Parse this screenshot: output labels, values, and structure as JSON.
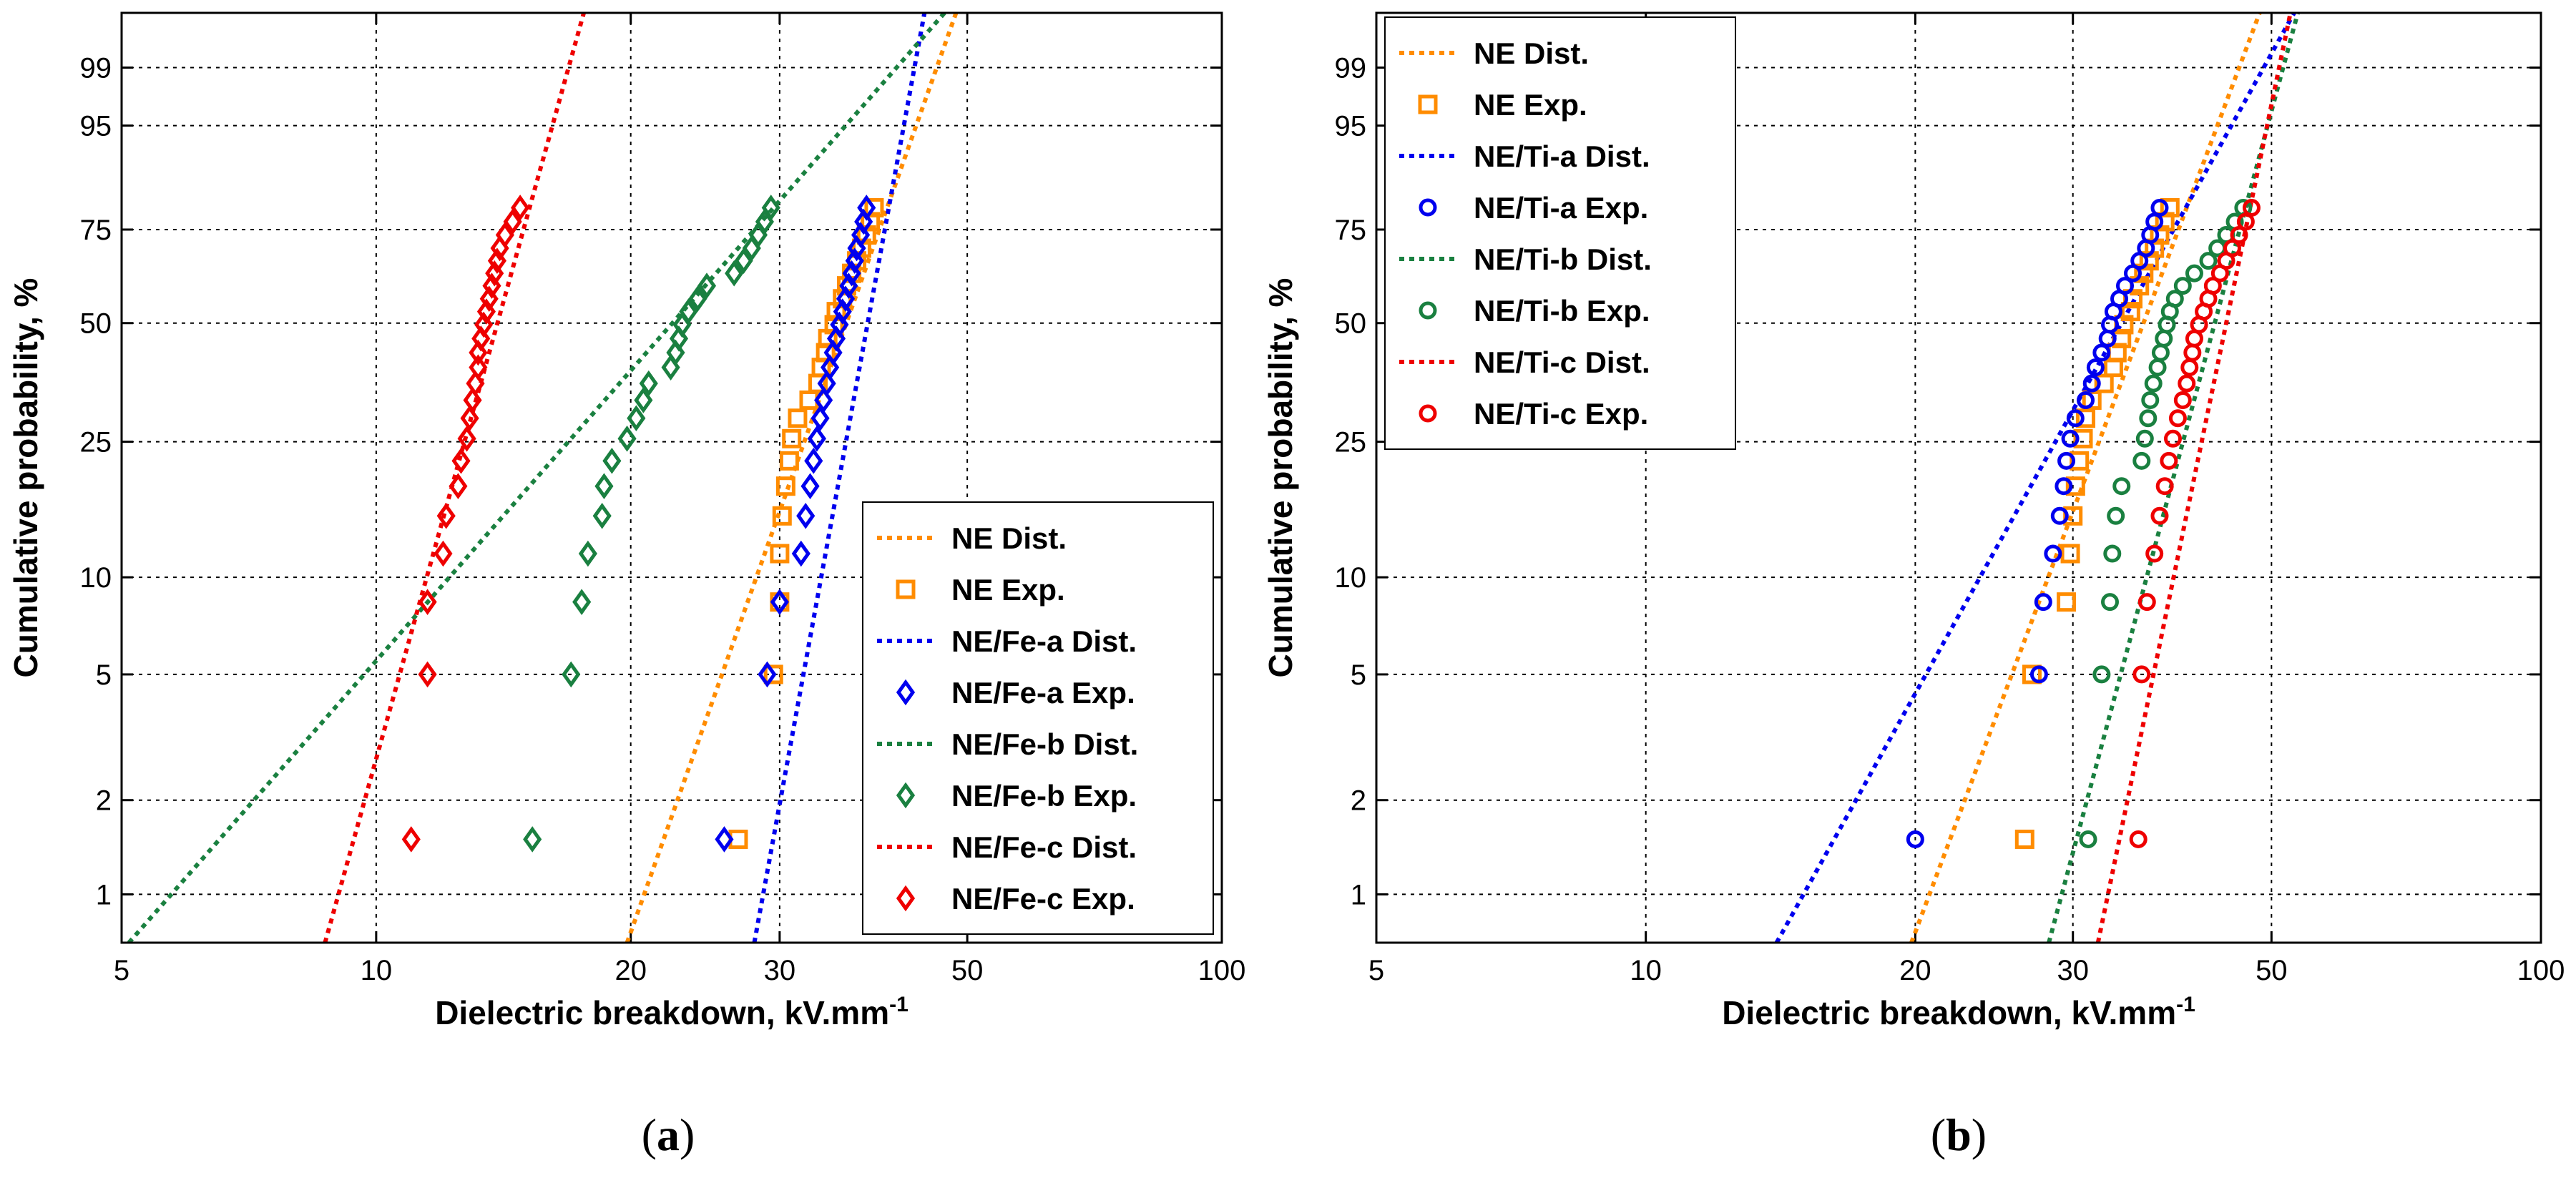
{
  "chart_data": [
    {
      "type": "scatter",
      "panel_label": "a",
      "xscale": "log",
      "yscale": "weibull",
      "xlim": [
        5,
        100
      ],
      "ylim": [
        0.7,
        99.9
      ],
      "xticks": [
        5,
        10,
        20,
        30,
        50,
        100
      ],
      "yticks": [
        1,
        2,
        5,
        10,
        25,
        50,
        75,
        95,
        99
      ],
      "xlabel": "Dielectric breakdown, kV.mm",
      "xlabel_sup": "-1",
      "ylabel": "Cumulative probability, %",
      "grid": true,
      "legend_position": "lower-right",
      "series": [
        {
          "name": "NE Dist.",
          "kind": "line",
          "color": "#FF8C00",
          "x": [
            19.8,
            48.5
          ]
        },
        {
          "name": "NE Exp.",
          "kind": "points",
          "marker": "square",
          "color": "#FF8C00",
          "x": [
            26.8,
            29.5,
            30.0,
            30.0,
            30.2,
            30.5,
            30.8,
            31.0,
            31.5,
            32.5,
            33.3,
            33.6,
            34.0,
            34.2,
            34.8,
            35.0,
            35.6,
            36.0,
            36.5,
            37.0,
            37.5,
            38.0,
            38.4,
            38.8
          ],
          "y": [
            1.5,
            5,
            8.4,
            11.8,
            15.3,
            18.7,
            22.1,
            25.5,
            29.0,
            32.4,
            35.8,
            39.3,
            42.7,
            46.1,
            49.6,
            53.0,
            56.4,
            59.9,
            63.3,
            66.7,
            70.1,
            73.6,
            77.0,
            80.4
          ]
        },
        {
          "name": "NE/Fe-a Dist.",
          "kind": "line",
          "color": "#0000EE",
          "x": [
            28.0,
            44.5
          ]
        },
        {
          "name": "NE/Fe-a Exp.",
          "kind": "points",
          "marker": "diamond",
          "color": "#0000EE",
          "x": [
            25.8,
            29.0,
            30.0,
            31.8,
            32.2,
            32.6,
            32.9,
            33.2,
            33.5,
            33.8,
            34.1,
            34.4,
            34.7,
            35.0,
            35.3,
            35.6,
            35.9,
            36.2,
            36.5,
            36.8,
            37.0,
            37.4,
            37.7,
            38.0
          ],
          "y": [
            1.5,
            5,
            8.4,
            11.8,
            15.3,
            18.7,
            22.1,
            25.5,
            29.0,
            32.4,
            35.8,
            39.3,
            42.7,
            46.1,
            49.6,
            53.0,
            56.4,
            59.9,
            63.3,
            66.7,
            70.1,
            73.6,
            77.0,
            80.4
          ]
        },
        {
          "name": "NE/Fe-b Dist.",
          "kind": "line",
          "color": "#1A8040",
          "x": [
            5.1,
            47.0
          ]
        },
        {
          "name": "NE/Fe-b Exp.",
          "kind": "points",
          "marker": "diamond",
          "color": "#1A8040",
          "x": [
            15.3,
            17.0,
            17.5,
            17.8,
            18.5,
            18.6,
            19.0,
            19.8,
            20.3,
            20.7,
            21.0,
            22.3,
            22.6,
            22.8,
            23.0,
            23.4,
            24.0,
            24.6,
            26.5,
            27.2,
            27.8,
            28.3,
            28.8,
            29.3
          ],
          "y": [
            1.5,
            5,
            8.4,
            11.8,
            15.3,
            18.7,
            22.1,
            25.5,
            29.0,
            32.4,
            35.8,
            39.3,
            42.7,
            46.1,
            49.6,
            53.0,
            56.4,
            59.9,
            63.3,
            66.7,
            70.1,
            73.6,
            77.0,
            80.4
          ]
        },
        {
          "name": "NE/Fe-c Dist.",
          "kind": "line",
          "color": "#EE0000",
          "x": [
            8.7,
            17.6
          ]
        },
        {
          "name": "NE/Fe-c Exp.",
          "kind": "points",
          "marker": "diamond",
          "color": "#EE0000",
          "x": [
            11.0,
            11.5,
            11.5,
            12.0,
            12.1,
            12.5,
            12.6,
            12.8,
            12.9,
            13.0,
            13.1,
            13.2,
            13.2,
            13.3,
            13.4,
            13.5,
            13.6,
            13.7,
            13.8,
            13.9,
            14.0,
            14.2,
            14.5,
            14.8
          ],
          "y": [
            1.5,
            5,
            8.4,
            11.8,
            15.3,
            18.7,
            22.1,
            25.5,
            29.0,
            32.4,
            35.8,
            39.3,
            42.7,
            46.1,
            49.6,
            53.0,
            56.4,
            59.9,
            63.3,
            66.7,
            70.1,
            73.6,
            77.0,
            80.4
          ]
        }
      ]
    },
    {
      "type": "scatter",
      "panel_label": "b",
      "xscale": "log",
      "yscale": "weibull",
      "xlim": [
        5,
        100
      ],
      "ylim": [
        0.7,
        99.9
      ],
      "xticks": [
        5,
        10,
        20,
        30,
        50,
        100
      ],
      "yticks": [
        1,
        2,
        5,
        10,
        25,
        50,
        75,
        95,
        99
      ],
      "xlabel": "Dielectric breakdown, kV.mm",
      "xlabel_sup": "-1",
      "ylabel": "Cumulative probability, %",
      "grid": true,
      "legend_position": "top-left",
      "series": [
        {
          "name": "NE Dist.",
          "kind": "line",
          "color": "#FF8C00",
          "x": [
            19.8,
            48.5
          ]
        },
        {
          "name": "NE Exp.",
          "kind": "points",
          "marker": "square",
          "color": "#FF8C00",
          "x": [
            26.5,
            27.0,
            29.5,
            29.8,
            30.0,
            30.2,
            30.5,
            30.8,
            31.0,
            31.5,
            32.5,
            33.3,
            33.6,
            34.0,
            34.2,
            34.8,
            35.0,
            35.6,
            36.0,
            36.5,
            37.0,
            37.5,
            38.0,
            38.5
          ],
          "y": [
            1.5,
            5,
            8.4,
            11.8,
            15.3,
            18.7,
            22.1,
            25.5,
            29.0,
            32.4,
            35.8,
            39.3,
            42.7,
            46.1,
            49.6,
            53.0,
            56.4,
            59.9,
            63.3,
            66.7,
            70.1,
            73.6,
            77.0,
            80.4
          ]
        },
        {
          "name": "NE/Ti-a Dist.",
          "kind": "line",
          "color": "#0000EE",
          "x": [
            14.0,
            53.0
          ]
        },
        {
          "name": "NE/Ti-a Exp.",
          "kind": "points",
          "marker": "circle",
          "color": "#0000EE",
          "x": [
            20.0,
            27.5,
            27.8,
            28.5,
            29.0,
            29.3,
            29.5,
            29.8,
            30.2,
            31.0,
            31.5,
            31.8,
            32.3,
            32.8,
            33.0,
            33.3,
            33.8,
            34.3,
            35.0,
            35.6,
            36.2,
            36.6,
            37.0,
            37.5
          ],
          "y": [
            1.5,
            5,
            8.4,
            11.8,
            15.3,
            18.7,
            22.1,
            25.5,
            29.0,
            32.4,
            35.8,
            39.3,
            42.7,
            46.1,
            49.6,
            53.0,
            56.4,
            59.9,
            63.3,
            66.7,
            70.1,
            73.6,
            77.0,
            80.4
          ]
        },
        {
          "name": "NE/Ti-b Dist.",
          "kind": "line",
          "color": "#1A8040",
          "x": [
            28.2,
            53.5
          ]
        },
        {
          "name": "NE/Ti-b Exp.",
          "kind": "points",
          "marker": "circle",
          "color": "#1A8040",
          "x": [
            31.2,
            32.3,
            33.0,
            33.2,
            33.5,
            34.0,
            35.8,
            36.1,
            36.4,
            36.6,
            36.9,
            37.3,
            37.6,
            37.9,
            38.2,
            38.5,
            39.0,
            39.8,
            41.0,
            42.5,
            43.5,
            44.5,
            45.5,
            46.5
          ],
          "y": [
            1.5,
            5,
            8.4,
            11.8,
            15.3,
            18.7,
            22.1,
            25.5,
            29.0,
            32.4,
            35.8,
            39.3,
            42.7,
            46.1,
            49.6,
            53.0,
            56.4,
            59.9,
            63.3,
            66.7,
            70.1,
            73.6,
            77.0,
            80.4
          ]
        },
        {
          "name": "NE/Ti-c Dist.",
          "kind": "line",
          "color": "#EE0000",
          "x": [
            32.0,
            52.5
          ]
        },
        {
          "name": "NE/Ti-c Exp.",
          "kind": "points",
          "marker": "circle",
          "color": "#EE0000",
          "x": [
            35.5,
            35.8,
            36.3,
            37.0,
            37.5,
            38.0,
            38.4,
            38.8,
            39.3,
            39.8,
            40.2,
            40.5,
            40.8,
            41.0,
            41.5,
            42.0,
            42.5,
            43.0,
            43.8,
            44.5,
            45.2,
            46.0,
            46.8,
            47.5
          ],
          "y": [
            1.5,
            5,
            8.4,
            11.8,
            15.3,
            18.7,
            22.1,
            25.5,
            29.0,
            32.4,
            35.8,
            39.3,
            42.7,
            46.1,
            49.6,
            53.0,
            56.4,
            59.9,
            63.3,
            66.7,
            70.1,
            73.6,
            77.0,
            80.4
          ]
        }
      ]
    }
  ]
}
